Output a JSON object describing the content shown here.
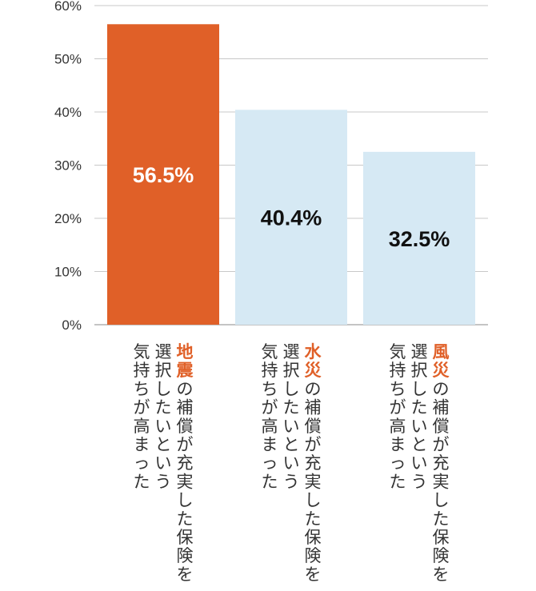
{
  "chart_data": {
    "type": "bar",
    "ylim": [
      0,
      60
    ],
    "y_ticks": [
      {
        "value": 0,
        "label": "0%"
      },
      {
        "value": 10,
        "label": "10%"
      },
      {
        "value": 20,
        "label": "20%"
      },
      {
        "value": 30,
        "label": "30%"
      },
      {
        "value": 40,
        "label": "40%"
      },
      {
        "value": 50,
        "label": "50%"
      },
      {
        "value": 60,
        "label": "60%"
      }
    ],
    "grid": true,
    "categories": [
      {
        "value": 56.5,
        "data_label": "56.5%",
        "bar_color": "#E06028",
        "label_color": "#FFFFFF",
        "label_lines": [
          [
            {
              "text": "地震",
              "highlight": true
            },
            {
              "text": "の補償が充実した保険を",
              "highlight": false
            }
          ],
          [
            {
              "text": "選択したいという",
              "highlight": false
            }
          ],
          [
            {
              "text": "気持ちが高まった",
              "highlight": false
            }
          ]
        ]
      },
      {
        "value": 40.4,
        "data_label": "40.4%",
        "bar_color": "#D6E9F4",
        "label_color": "#111111",
        "label_lines": [
          [
            {
              "text": "水災",
              "highlight": true
            },
            {
              "text": "の補償が充実した保険を",
              "highlight": false
            }
          ],
          [
            {
              "text": "選択したいという",
              "highlight": false
            }
          ],
          [
            {
              "text": "気持ちが高まった",
              "highlight": false
            }
          ]
        ]
      },
      {
        "value": 32.5,
        "data_label": "32.5%",
        "bar_color": "#D6E9F4",
        "label_color": "#111111",
        "label_lines": [
          [
            {
              "text": "風災",
              "highlight": true
            },
            {
              "text": "の補償が充実した保険を",
              "highlight": false
            }
          ],
          [
            {
              "text": "選択したいという",
              "highlight": false
            }
          ],
          [
            {
              "text": "気持ちが高まった",
              "highlight": false
            }
          ]
        ]
      }
    ]
  },
  "colors": {
    "highlight_text": "#E06028",
    "body_text": "#333333",
    "gridline": "#C8C8C8",
    "axis_line": "#B0B0B0"
  }
}
